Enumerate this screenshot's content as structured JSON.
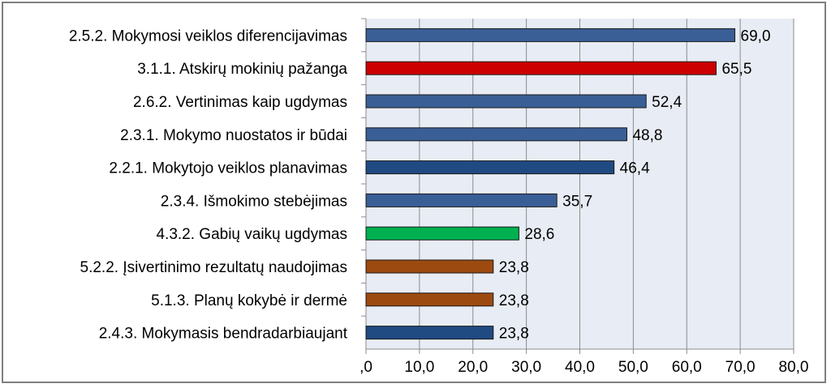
{
  "chart_data": {
    "type": "bar",
    "orientation": "horizontal",
    "categories": [
      "2.5.2. Mokymosi veiklos diferencijavimas",
      "3.1.1. Atskirų mokinių pažanga",
      "2.6.2. Vertinimas kaip ugdymas",
      "2.3.1. Mokymo nuostatos ir būdai",
      "2.2.1. Mokytojo veiklos planavimas",
      "2.3.4. Išmokimo stebėjimas",
      "4.3.2. Gabių vaikų ugdymas",
      "5.2.2. Įsivertinimo rezultatų naudojimas",
      "5.1.3. Planų kokybė ir dermė",
      "2.4.3. Mokymasis bendradarbiaujant"
    ],
    "values": [
      69.0,
      65.5,
      52.4,
      48.8,
      46.4,
      35.7,
      28.6,
      23.8,
      23.8,
      23.8
    ],
    "value_labels": [
      "69,0",
      "65,5",
      "52,4",
      "48,8",
      "46,4",
      "35,7",
      "28,6",
      "23,8",
      "23,8",
      "23,8"
    ],
    "bar_colors": [
      "#3a5e96",
      "#cc0000",
      "#3a5e96",
      "#3a5e96",
      "#1f4a82",
      "#3a5e96",
      "#00b050",
      "#9c4a10",
      "#9c4a10",
      "#1f4a82"
    ],
    "xlim": [
      0,
      80
    ],
    "xticks": [
      0,
      10,
      20,
      30,
      40,
      50,
      60,
      70,
      80
    ],
    "xtick_labels": [
      ",0",
      "10,0",
      "20,0",
      "30,0",
      "40,0",
      "50,0",
      "60,0",
      "70,0",
      "80,0"
    ],
    "grid": "vertical",
    "plot_background": "#e8ecf4",
    "title": "",
    "xlabel": "",
    "ylabel": ""
  }
}
